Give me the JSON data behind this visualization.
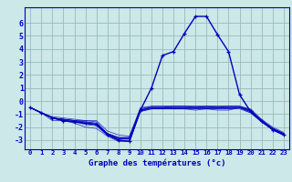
{
  "title": "Graphe des températures (°c)",
  "background_color": "#cce8e8",
  "line_color": "#0000bb",
  "grid_color": "#99bbbb",
  "x_labels": [
    "0",
    "1",
    "2",
    "3",
    "4",
    "5",
    "6",
    "7",
    "8",
    "9",
    "10",
    "11",
    "12",
    "13",
    "14",
    "15",
    "16",
    "17",
    "18",
    "19",
    "20",
    "21",
    "22",
    "23"
  ],
  "yticks": [
    -3,
    -2,
    -1,
    0,
    1,
    2,
    3,
    4,
    5,
    6
  ],
  "ylim": [
    -3.7,
    7.2
  ],
  "xlim": [
    -0.5,
    23.5
  ],
  "curves": [
    {
      "y": [
        -0.5,
        -0.9,
        -1.3,
        -1.4,
        -1.5,
        -1.5,
        -1.6,
        -2.5,
        -2.8,
        -2.8,
        -0.7,
        -0.5,
        -0.5,
        -0.5,
        -0.5,
        -0.5,
        -0.5,
        -0.5,
        -0.5,
        -0.5,
        -0.7,
        -1.5,
        -2.1,
        -2.5
      ]
    },
    {
      "y": [
        -0.5,
        -0.9,
        -1.5,
        -1.5,
        -1.7,
        -2.0,
        -2.1,
        -2.7,
        -3.1,
        -3.1,
        -0.8,
        -0.6,
        -0.6,
        -0.6,
        -0.6,
        -0.6,
        -0.6,
        -0.6,
        -0.6,
        -0.6,
        -0.9,
        -1.6,
        -2.2,
        -2.6
      ]
    },
    {
      "y": [
        -0.5,
        -0.9,
        -1.2,
        -1.3,
        -1.4,
        -1.5,
        -1.5,
        -2.3,
        -2.6,
        -2.7,
        -0.5,
        -0.4,
        -0.4,
        -0.4,
        -0.4,
        -0.4,
        -0.4,
        -0.4,
        -0.4,
        -0.4,
        -0.6,
        -1.4,
        -2.0,
        -2.4
      ]
    },
    {
      "y": [
        -0.5,
        -0.9,
        -1.3,
        -1.4,
        -1.5,
        -1.6,
        -1.7,
        -2.5,
        -2.8,
        -2.9,
        -0.7,
        -0.6,
        -0.6,
        -0.6,
        -0.6,
        -0.7,
        -0.6,
        -0.7,
        -0.7,
        -0.5,
        -0.8,
        -1.6,
        -2.2,
        -2.6
      ]
    },
    {
      "y": [
        -0.5,
        -0.9,
        -1.3,
        -1.5,
        -1.6,
        -1.7,
        -1.8,
        -2.6,
        -3.0,
        -3.0,
        -0.7,
        -0.5,
        -0.5,
        -0.5,
        -0.5,
        -0.5,
        -0.5,
        -0.5,
        -0.5,
        -0.5,
        -0.8,
        -1.5,
        -2.2,
        -2.5
      ]
    },
    {
      "y": [
        -0.5,
        -0.9,
        -1.3,
        -1.5,
        -1.6,
        -1.8,
        -1.9,
        -2.6,
        -3.0,
        -3.1,
        -0.8,
        -0.6,
        -0.6,
        -0.6,
        -0.6,
        -0.6,
        -0.6,
        -0.6,
        -0.6,
        -0.5,
        -0.9,
        -1.6,
        -2.2,
        -2.6
      ]
    },
    {
      "y": [
        -0.5,
        -0.9,
        -1.3,
        -1.5,
        -1.6,
        -1.7,
        -1.8,
        -2.6,
        -2.9,
        -2.9,
        -0.6,
        -0.5,
        -0.5,
        -0.4,
        -0.4,
        -0.5,
        -0.4,
        -0.5,
        -0.4,
        -0.4,
        -0.7,
        -1.5,
        -2.1,
        -2.5
      ]
    },
    {
      "y": [
        -0.5,
        -0.9,
        -1.3,
        -1.4,
        -1.5,
        -1.7,
        -1.8,
        -2.5,
        -2.9,
        -2.8,
        -0.6,
        -0.4,
        -0.4,
        -0.4,
        -0.4,
        -0.4,
        -0.4,
        -0.4,
        -0.4,
        -0.4,
        -0.7,
        -1.5,
        -2.1,
        -2.5
      ]
    },
    {
      "y": [
        -0.5,
        -0.9,
        -1.3,
        -1.5,
        -1.6,
        -1.7,
        -1.8,
        -2.5,
        -2.9,
        -2.9,
        -0.7,
        -0.5,
        -0.5,
        -0.5,
        -0.5,
        -0.5,
        -0.5,
        -0.5,
        -0.5,
        -0.5,
        -0.8,
        -1.5,
        -2.1,
        -2.5
      ]
    },
    {
      "y": [
        -0.5,
        -0.9,
        -1.3,
        -1.4,
        -1.5,
        -1.6,
        -1.7,
        -2.5,
        -2.8,
        -2.8,
        -0.7,
        -0.5,
        -0.5,
        -0.5,
        -0.5,
        -0.5,
        -0.5,
        -0.5,
        -0.5,
        -0.5,
        -0.7,
        -1.5,
        -2.1,
        -2.5
      ]
    }
  ],
  "main_curve": {
    "y": [
      -0.5,
      -0.9,
      -1.3,
      -1.5,
      -1.6,
      -1.7,
      -1.8,
      -2.6,
      -3.0,
      -3.1,
      -0.7,
      1.0,
      3.5,
      3.8,
      5.2,
      6.5,
      6.5,
      5.1,
      3.8,
      0.5,
      -0.8,
      -1.5,
      -2.2,
      -2.6
    ]
  }
}
